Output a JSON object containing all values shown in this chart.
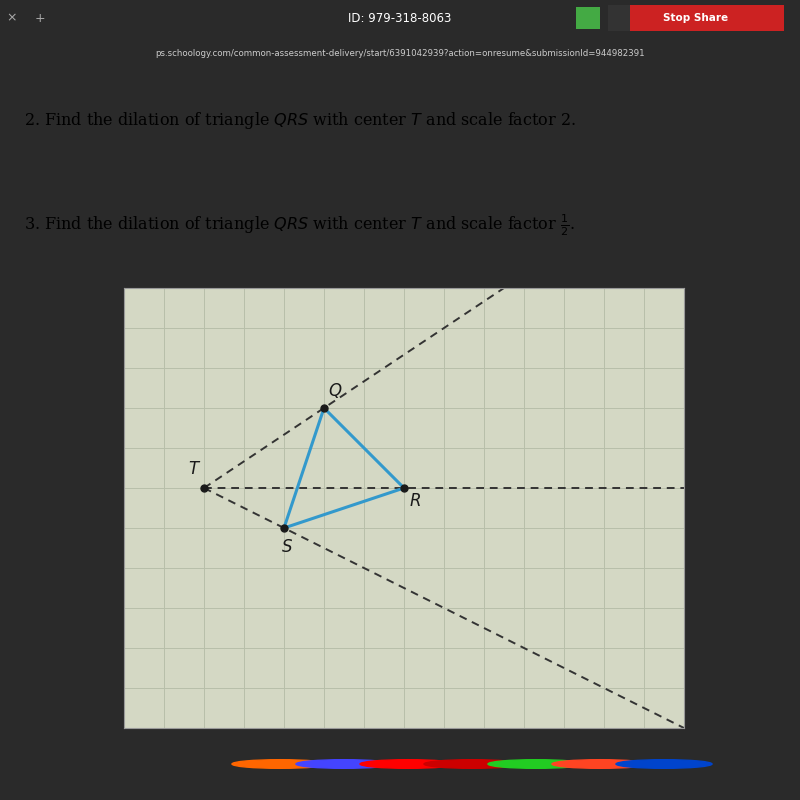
{
  "grid_xlim": [
    0,
    14
  ],
  "grid_ylim": [
    0,
    11
  ],
  "grid_color": "#b8bfaa",
  "bg_color": "#d4d8c4",
  "T": [
    2,
    6
  ],
  "Q": [
    5,
    8
  ],
  "R": [
    7,
    6
  ],
  "S": [
    4,
    5
  ],
  "point_color": "#1a1a1a",
  "triangle_color": "#3399cc",
  "triangle_linewidth": 2.2,
  "dashed_color": "#333333",
  "dashed_linewidth": 1.4,
  "label_fontsize": 12,
  "header_bg": "#2a2a2a",
  "tab_bar_bg": "#3a3a3a",
  "url_bar_bg": "#3f3f3f",
  "content_bg": "#e0e0d4",
  "url_text": "ps.schoology.com/common-assessment-delivery/start/6391042939?action=onresume&submissionId=944982391",
  "id_text": "ID: 979-318-8063",
  "stop_share_text": "Stop Share",
  "taskbar_bg": "#1a1a2e"
}
